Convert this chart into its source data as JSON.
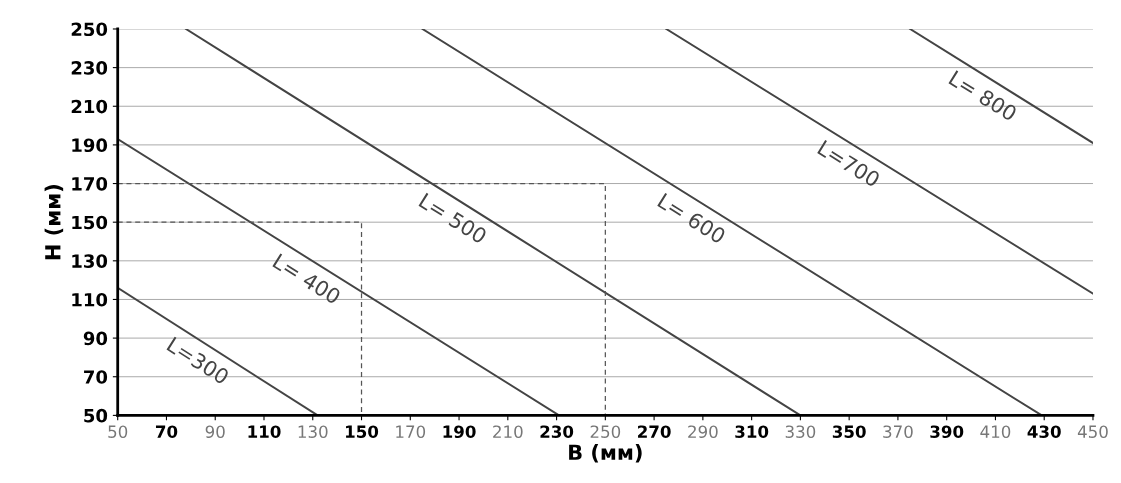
{
  "chart_data": {
    "type": "line",
    "xlabel": "B (мм)",
    "ylabel": "H (мм)",
    "xlim": [
      50,
      450
    ],
    "ylim": [
      50,
      250
    ],
    "xticks": [
      50,
      70,
      90,
      110,
      130,
      150,
      170,
      190,
      210,
      230,
      250,
      270,
      290,
      310,
      330,
      350,
      370,
      390,
      410,
      430,
      450
    ],
    "yticks": [
      50,
      70,
      90,
      110,
      130,
      150,
      170,
      190,
      210,
      230,
      250
    ],
    "grid": "y",
    "series": [
      {
        "name": "L=300",
        "color": "#444444",
        "x": [
          50,
          132
        ],
        "values": [
          116,
          50
        ]
      },
      {
        "name": "L= 400",
        "color": "#444444",
        "x": [
          50,
          231
        ],
        "values": [
          193,
          50
        ]
      },
      {
        "name": "L= 500",
        "color": "#444444",
        "x": [
          78,
          330
        ],
        "values": [
          250,
          50
        ]
      },
      {
        "name": "L= 600",
        "color": "#444444",
        "x": [
          175,
          429
        ],
        "values": [
          250,
          50
        ]
      },
      {
        "name": "L=700",
        "color": "#444444",
        "x": [
          275,
          450
        ],
        "values": [
          250,
          113
        ]
      },
      {
        "name": "L= 800",
        "color": "#444444",
        "x": [
          375,
          450
        ],
        "values": [
          250,
          191
        ]
      },
      {
        "line_style": "dashed",
        "color": "#555555",
        "x": [
          50,
          150,
          150
        ],
        "values": [
          150,
          150,
          50
        ]
      },
      {
        "line_style": "dashed",
        "color": "#555555",
        "x": [
          50,
          250,
          250
        ],
        "values": [
          170,
          170,
          50
        ]
      }
    ]
  }
}
